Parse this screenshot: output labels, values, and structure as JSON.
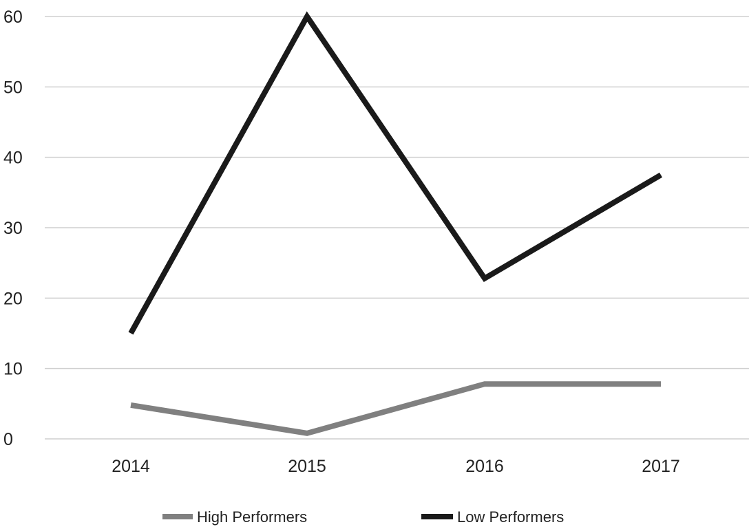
{
  "chart_data": {
    "type": "line",
    "categories": [
      "2014",
      "2015",
      "2016",
      "2017"
    ],
    "series": [
      {
        "name": "High Performers",
        "values": [
          4.8,
          0.8,
          7.8,
          7.8
        ],
        "color": "#808080"
      },
      {
        "name": "Low Performers",
        "values": [
          15,
          60,
          22.8,
          37.5
        ],
        "color": "#1a1a1a"
      }
    ],
    "title": "",
    "xlabel": "",
    "ylabel": "",
    "ylim": [
      0,
      60
    ],
    "yticks": [
      "0",
      "10",
      "20",
      "30",
      "40",
      "50",
      "60"
    ],
    "grid": "horizontal",
    "legend": {
      "placement": "bottom-center",
      "items": [
        "High Performers",
        "Low Performers"
      ]
    }
  }
}
